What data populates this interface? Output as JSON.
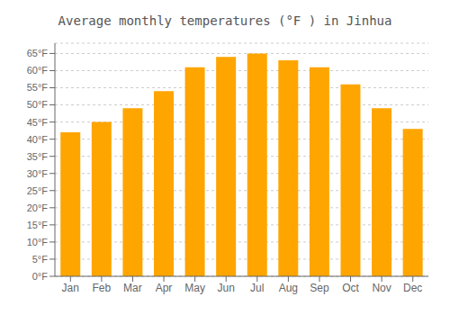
{
  "chart_data": {
    "type": "bar",
    "title": "Average monthly temperatures (°F ) in Jinhua",
    "categories": [
      "Jan",
      "Feb",
      "Mar",
      "Apr",
      "May",
      "Jun",
      "Jul",
      "Aug",
      "Sep",
      "Oct",
      "Nov",
      "Dec"
    ],
    "values": [
      42,
      45,
      49,
      54,
      61,
      64,
      65,
      63,
      61,
      56,
      49,
      43
    ],
    "color": "#FFA500",
    "ylim": [
      0,
      68
    ],
    "yticks": [
      {
        "value": 0,
        "label": "0°F"
      },
      {
        "value": 5,
        "label": "5°F"
      },
      {
        "value": 10,
        "label": "10°F"
      },
      {
        "value": 15,
        "label": "15°F"
      },
      {
        "value": 20,
        "label": "20°F"
      },
      {
        "value": 25,
        "label": "25°F"
      },
      {
        "value": 30,
        "label": "30°F"
      },
      {
        "value": 35,
        "label": "35°F"
      },
      {
        "value": 40,
        "label": "40°F"
      },
      {
        "value": 45,
        "label": "45°F"
      },
      {
        "value": 50,
        "label": "50°F"
      },
      {
        "value": 55,
        "label": "55°F"
      },
      {
        "value": 60,
        "label": "60°F"
      },
      {
        "value": 65,
        "label": "65°F"
      }
    ],
    "grid": true
  }
}
